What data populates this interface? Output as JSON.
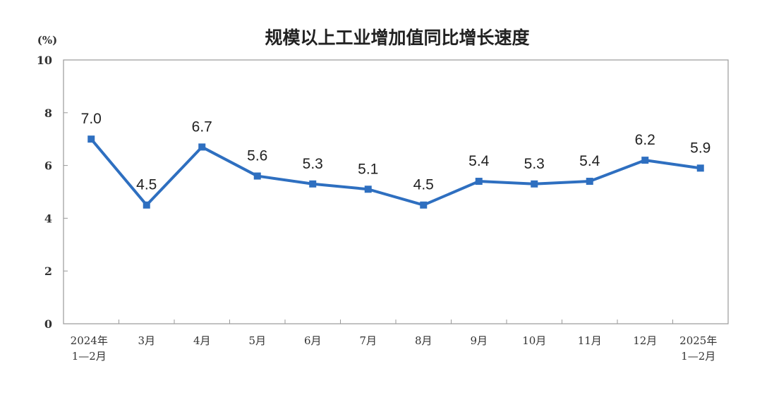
{
  "chart_data": {
    "type": "line",
    "title": "规模以上工业增加值同比增长速度",
    "ylabel": "(%)",
    "ylim": [
      0,
      10
    ],
    "yticks": [
      0,
      2,
      4,
      6,
      8,
      10
    ],
    "categories": [
      [
        "2024年",
        "1—2月"
      ],
      [
        "3月"
      ],
      [
        "4月"
      ],
      [
        "5月"
      ],
      [
        "6月"
      ],
      [
        "7月"
      ],
      [
        "8月"
      ],
      [
        "9月"
      ],
      [
        "10月"
      ],
      [
        "11月"
      ],
      [
        "12月"
      ],
      [
        "2025年",
        "1—2月"
      ]
    ],
    "values": [
      7.0,
      4.5,
      6.7,
      5.6,
      5.3,
      5.1,
      4.5,
      5.4,
      5.3,
      5.4,
      6.2,
      5.9
    ],
    "data_labels": [
      "7.0",
      "4.5",
      "6.7",
      "5.6",
      "5.3",
      "5.1",
      "4.5",
      "5.4",
      "5.3",
      "5.4",
      "6.2",
      "5.9"
    ],
    "grid": false,
    "line_color": "#2e6fc0",
    "marker": "square"
  }
}
